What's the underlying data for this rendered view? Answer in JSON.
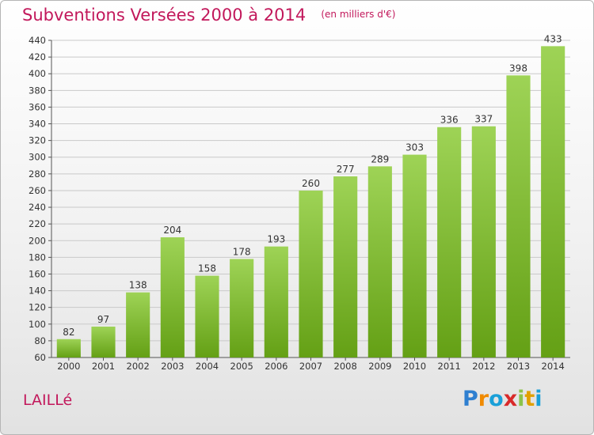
{
  "header": {
    "title": "Subventions Versées 2000 à 2014",
    "subtitle": "(en milliers d'€)"
  },
  "commune": "LAILLé",
  "logo": {
    "text": "Proxiti",
    "letters": [
      {
        "ch": "P",
        "color": "#2e7fd0"
      },
      {
        "ch": "r",
        "color": "#f08a00"
      },
      {
        "ch": "o",
        "color": "#1aa0d8"
      },
      {
        "ch": "x",
        "color": "#d82a2a"
      },
      {
        "ch": "i",
        "color": "#8bc34a"
      },
      {
        "ch": "t",
        "color": "#e1a000"
      },
      {
        "ch": "i",
        "color": "#1aa0d8"
      }
    ]
  },
  "colors": {
    "bar_top": "#9ed356",
    "bar_bottom": "#64a015",
    "grid": "#c9c9c9",
    "title": "#c2185b"
  },
  "chart_data": {
    "type": "bar",
    "categories": [
      "2000",
      "2001",
      "2002",
      "2003",
      "2004",
      "2005",
      "2006",
      "2007",
      "2008",
      "2009",
      "2010",
      "2011",
      "2012",
      "2013",
      "2014"
    ],
    "values": [
      82,
      97,
      138,
      204,
      158,
      178,
      193,
      260,
      277,
      289,
      303,
      336,
      337,
      398,
      433
    ],
    "ylim": [
      60,
      440
    ],
    "yticks": [
      60,
      80,
      100,
      120,
      140,
      160,
      180,
      200,
      220,
      240,
      260,
      280,
      300,
      320,
      340,
      360,
      380,
      400,
      420,
      440
    ],
    "grid": true,
    "title": "Subventions Versées 2000 à 2014",
    "subtitle": "(en milliers d'€)",
    "xlabel": "",
    "ylabel": ""
  }
}
